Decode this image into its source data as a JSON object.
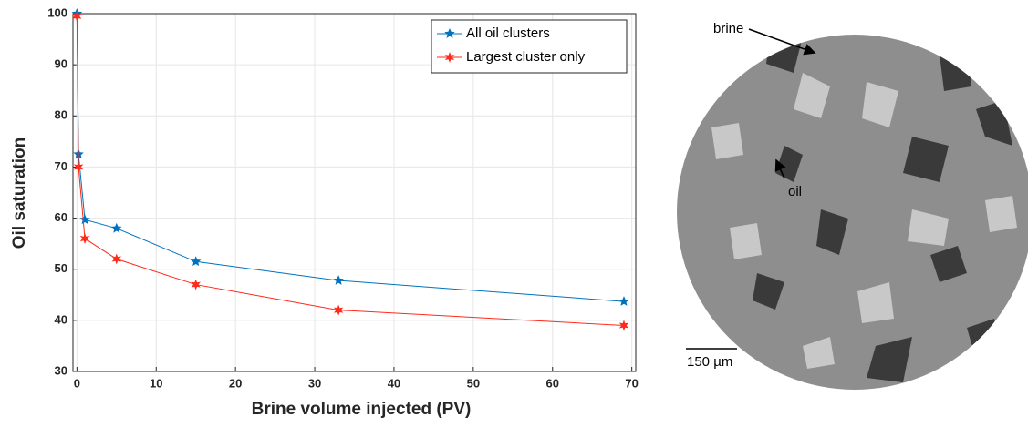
{
  "chart_data": {
    "type": "line",
    "xlabel": "Brine volume injected (PV)",
    "ylabel": "Oil saturation",
    "x": [
      0,
      0.2,
      1,
      5,
      15,
      33,
      69
    ],
    "series": [
      {
        "name": "All oil clusters",
        "color": "#0072bd",
        "marker": "star",
        "values": [
          100,
          72.5,
          59.7,
          58,
          51.5,
          47.8,
          43.7
        ]
      },
      {
        "name": "Largest cluster only",
        "color": "#ff2a1a",
        "marker": "hexagram",
        "values": [
          99.5,
          70,
          56,
          52,
          47,
          42,
          39
        ]
      }
    ],
    "xlim": [
      -0.5,
      70.5
    ],
    "xticks": [
      0,
      10,
      20,
      30,
      40,
      50,
      60,
      70
    ],
    "ylim": [
      30,
      100
    ],
    "yticks": [
      30,
      40,
      50,
      60,
      70,
      80,
      90,
      100
    ],
    "grid": true,
    "legend": "upper right"
  },
  "micrograph": {
    "labels": [
      "brine",
      "oil"
    ],
    "scale_bar": "150 µm"
  }
}
